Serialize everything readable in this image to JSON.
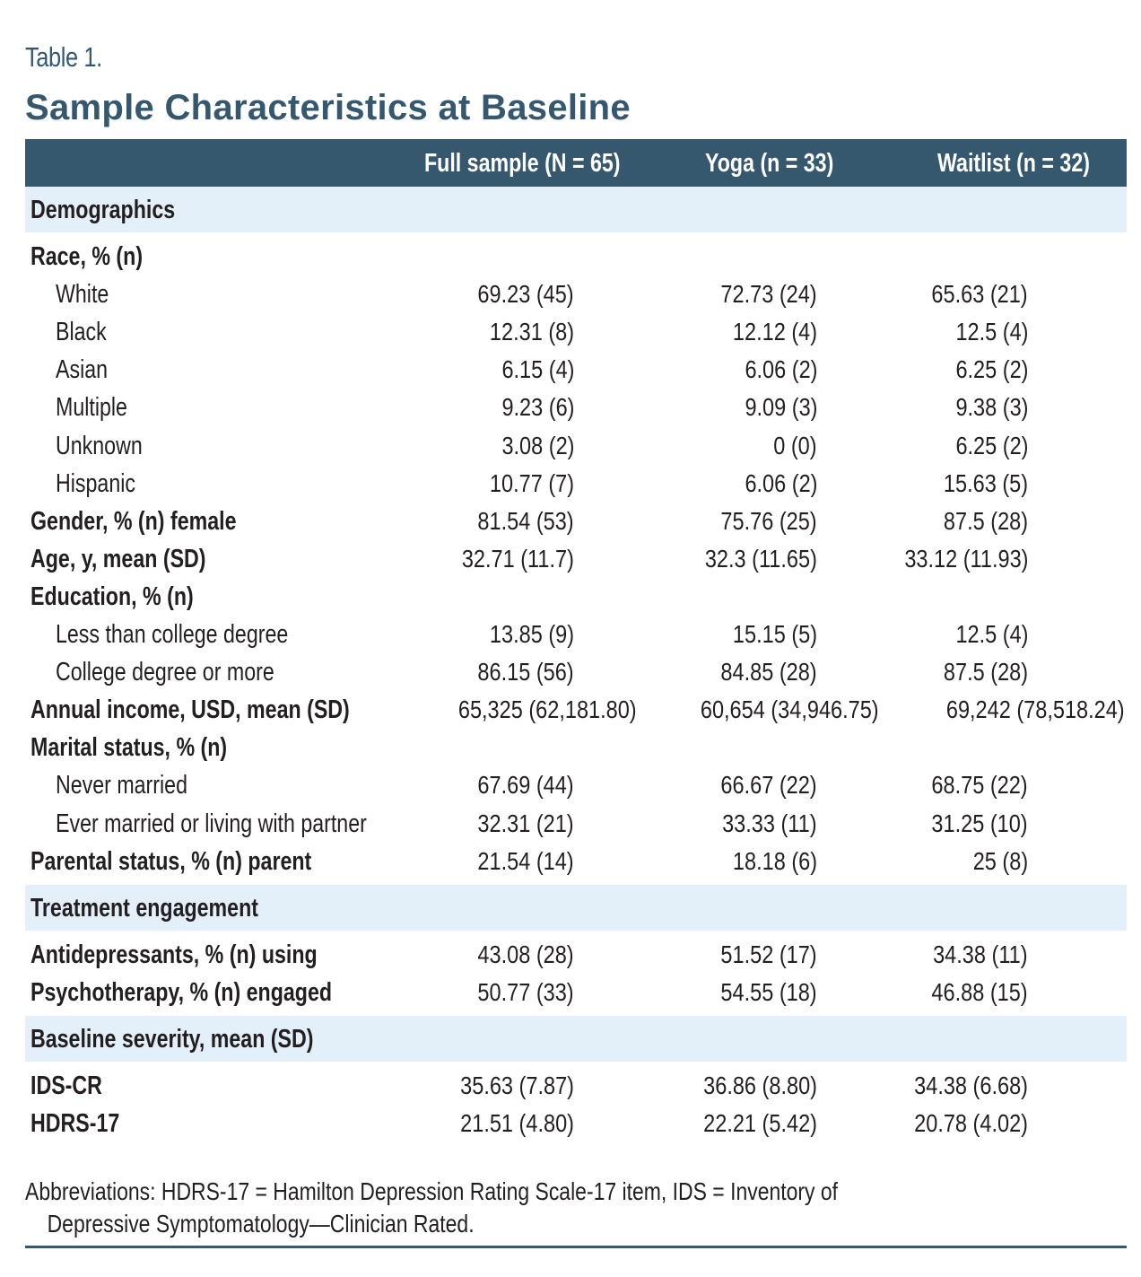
{
  "table_label": "Table 1.",
  "table_title": "Sample Characteristics at Baseline",
  "columns": [
    "",
    "Full sample (N = 65)",
    "Yoga (n = 33)",
    "Waitlist (n = 32)"
  ],
  "sections": [
    {
      "title": "Demographics",
      "rows": [
        {
          "label": "Race, % (n)",
          "style": "bold",
          "values": [
            "",
            "",
            ""
          ]
        },
        {
          "label": "White",
          "style": "indent",
          "values": [
            "69.23 (45)",
            "72.73 (24)",
            "65.63 (21)"
          ]
        },
        {
          "label": "Black",
          "style": "indent",
          "values": [
            "12.31 (8)",
            "12.12 (4)",
            "12.5 (4)"
          ]
        },
        {
          "label": "Asian",
          "style": "indent",
          "values": [
            "6.15 (4)",
            "6.06 (2)",
            "6.25 (2)"
          ]
        },
        {
          "label": "Multiple",
          "style": "indent",
          "values": [
            "9.23 (6)",
            "9.09 (3)",
            "9.38 (3)"
          ]
        },
        {
          "label": "Unknown",
          "style": "indent",
          "values": [
            "3.08 (2)",
            "0 (0)",
            "6.25 (2)"
          ]
        },
        {
          "label": "Hispanic",
          "style": "indent",
          "values": [
            "10.77 (7)",
            "6.06 (2)",
            "15.63 (5)"
          ]
        },
        {
          "label": "Gender, % (n) female",
          "style": "bold",
          "values": [
            "81.54 (53)",
            "75.76 (25)",
            "87.5 (28)"
          ]
        },
        {
          "label": "Age, y, mean (SD)",
          "style": "bold",
          "values": [
            "32.71 (11.7)",
            "32.3 (11.65)",
            "33.12 (11.93)"
          ]
        },
        {
          "label": "Education, % (n)",
          "style": "bold",
          "values": [
            "",
            "",
            ""
          ]
        },
        {
          "label": "Less than college degree",
          "style": "indent",
          "values": [
            "13.85 (9)",
            "15.15 (5)",
            "12.5 (4)"
          ]
        },
        {
          "label": "College degree or more",
          "style": "indent",
          "values": [
            "86.15 (56)",
            "84.85 (28)",
            "87.5 (28)"
          ]
        },
        {
          "label": "Annual income, USD, mean (SD)",
          "style": "bold",
          "values": [
            "65,325 (62,181.80)",
            "60,654 (34,946.75)",
            "69,242 (78,518.24)"
          ]
        },
        {
          "label": "Marital status, % (n)",
          "style": "bold",
          "values": [
            "",
            "",
            ""
          ]
        },
        {
          "label": "Never married",
          "style": "indent",
          "values": [
            "67.69 (44)",
            "66.67 (22)",
            "68.75 (22)"
          ]
        },
        {
          "label": "Ever married or living with partner",
          "style": "indent",
          "values": [
            "32.31 (21)",
            "33.33 (11)",
            "31.25 (10)"
          ]
        },
        {
          "label": "Parental status, % (n) parent",
          "style": "bold",
          "values": [
            "21.54 (14)",
            "18.18 (6)",
            "25 (8)"
          ]
        }
      ]
    },
    {
      "title": "Treatment engagement",
      "rows": [
        {
          "label": "Antidepressants, % (n) using",
          "style": "bold",
          "values": [
            "43.08 (28)",
            "51.52 (17)",
            "34.38 (11)"
          ]
        },
        {
          "label": "Psychotherapy, % (n) engaged",
          "style": "bold",
          "values": [
            "50.77 (33)",
            "54.55 (18)",
            "46.88 (15)"
          ]
        }
      ]
    },
    {
      "title": "Baseline severity, mean (SD)",
      "rows": [
        {
          "label": "IDS-CR",
          "style": "bold",
          "values": [
            "35.63 (7.87)",
            "36.86 (8.80)",
            "34.38 (6.68)"
          ]
        },
        {
          "label": "HDRS-17",
          "style": "bold",
          "values": [
            "21.51 (4.80)",
            "22.21 (5.42)",
            "20.78 (4.02)"
          ]
        }
      ]
    }
  ],
  "footnote": {
    "line1": "Abbreviations: HDRS-17 = Hamilton Depression Rating Scale-17 item, IDS = Inventory of",
    "line2": "Depressive Symptomatology—Clinician Rated."
  },
  "colors": {
    "header_bg": "#36586f",
    "section_bg": "#e3f0f9",
    "title": "#36586f"
  }
}
